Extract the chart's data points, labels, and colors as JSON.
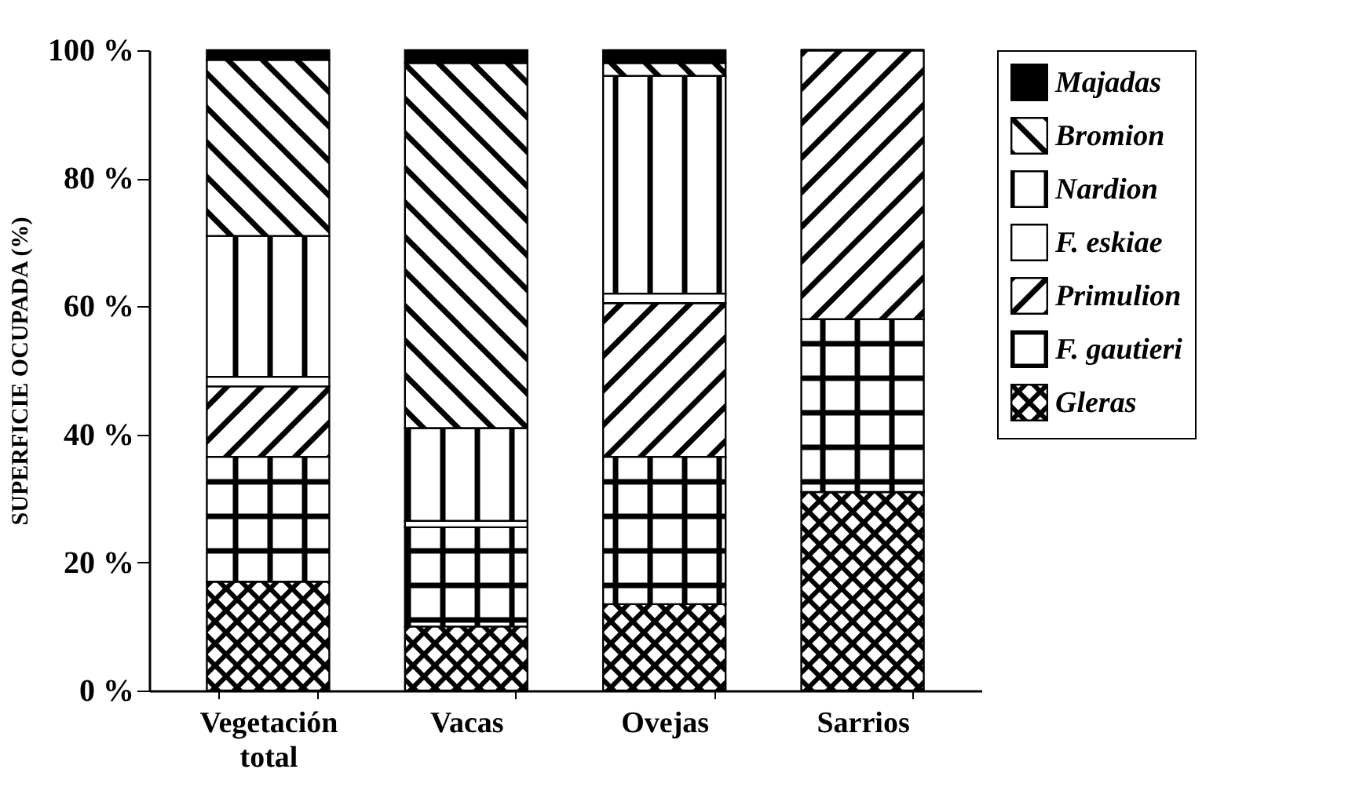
{
  "chart_data": {
    "type": "bar",
    "stacked": true,
    "ylabel": "SUPERFICIE OCUPADA (%)",
    "categories": [
      "Vegetación total",
      "Vacas",
      "Ovejas",
      "Sarrios"
    ],
    "series": [
      {
        "name": "Gleras",
        "color": "#000000",
        "values": [
          17,
          10,
          13.5,
          31
        ]
      },
      {
        "name": "F. gautieri",
        "color": "#000000",
        "values": [
          19.5,
          15.5,
          23,
          27
        ]
      },
      {
        "name": "Primulion",
        "color": "#000000",
        "values": [
          11,
          0,
          24,
          42
        ]
      },
      {
        "name": "F. eskiae",
        "color": "#000000",
        "values": [
          1.5,
          1,
          1.5,
          0
        ]
      },
      {
        "name": "Nardion",
        "color": "#000000",
        "values": [
          22,
          14.5,
          34,
          0
        ]
      },
      {
        "name": "Bromion",
        "color": "#000000",
        "values": [
          27.5,
          57,
          2,
          0
        ]
      },
      {
        "name": "Majadas",
        "color": "#000000",
        "values": [
          1.5,
          2,
          2,
          0
        ]
      }
    ],
    "ylim": [
      0,
      100
    ],
    "yticks": [
      {
        "value": 0,
        "label": "0 %"
      },
      {
        "value": 20,
        "label": "20 %"
      },
      {
        "value": 40,
        "label": "40 %"
      },
      {
        "value": 60,
        "label": "60 %"
      },
      {
        "value": 80,
        "label": "80 %"
      },
      {
        "value": 100,
        "label": "100 %"
      }
    ],
    "legend": "top right"
  }
}
